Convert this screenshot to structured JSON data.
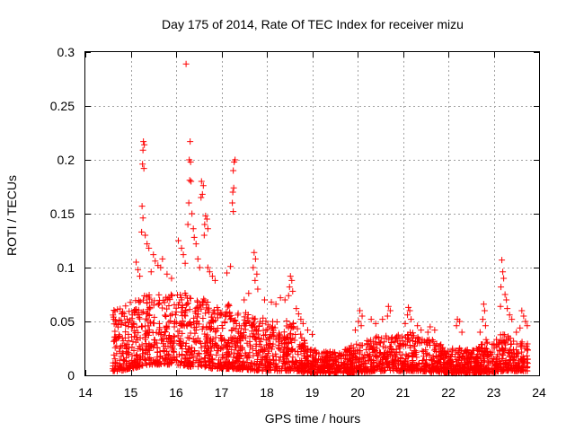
{
  "chart_data": {
    "type": "scatter",
    "title": "Day 175 of 2014, Rate Of TEC Index for receiver mizu",
    "xlabel": "GPS time / hours",
    "ylabel": "ROTI / TECUs",
    "xlim": [
      14,
      24
    ],
    "ylim": [
      0,
      0.3
    ],
    "xticks": [
      "14",
      "15",
      "16",
      "17",
      "18",
      "19",
      "20",
      "21",
      "22",
      "23",
      "24"
    ],
    "yticks": [
      "0",
      "0.05",
      "0.1",
      "0.15",
      "0.2",
      "0.25",
      "0.3"
    ],
    "grid": true,
    "marker": "+",
    "color": "#ff0000",
    "series": [
      {
        "name": "ROTI",
        "points": [
          [
            16.22,
            0.289
          ],
          [
            15.28,
            0.217
          ],
          [
            15.3,
            0.214
          ],
          [
            15.27,
            0.209
          ],
          [
            15.26,
            0.196
          ],
          [
            15.29,
            0.192
          ],
          [
            16.31,
            0.217
          ],
          [
            16.29,
            0.2
          ],
          [
            16.32,
            0.198
          ],
          [
            16.3,
            0.181
          ],
          [
            16.33,
            0.18
          ],
          [
            16.56,
            0.18
          ],
          [
            16.6,
            0.176
          ],
          [
            16.58,
            0.168
          ],
          [
            16.55,
            0.165
          ],
          [
            17.3,
            0.2
          ],
          [
            17.28,
            0.198
          ],
          [
            17.26,
            0.19
          ],
          [
            17.27,
            0.174
          ],
          [
            17.25,
            0.17
          ],
          [
            17.24,
            0.16
          ],
          [
            17.26,
            0.152
          ],
          [
            16.65,
            0.148
          ],
          [
            16.68,
            0.145
          ],
          [
            16.63,
            0.14
          ],
          [
            16.7,
            0.136
          ],
          [
            16.62,
            0.13
          ],
          [
            16.28,
            0.16
          ],
          [
            16.35,
            0.15
          ],
          [
            16.26,
            0.14
          ],
          [
            16.38,
            0.136
          ],
          [
            16.4,
            0.128
          ],
          [
            16.44,
            0.122
          ],
          [
            15.25,
            0.157
          ],
          [
            15.27,
            0.146
          ],
          [
            15.24,
            0.133
          ],
          [
            15.32,
            0.13
          ],
          [
            15.36,
            0.122
          ],
          [
            15.4,
            0.118
          ],
          [
            15.5,
            0.112
          ],
          [
            15.54,
            0.106
          ],
          [
            15.6,
            0.102
          ],
          [
            15.66,
            0.1
          ],
          [
            15.7,
            0.108
          ],
          [
            16.05,
            0.125
          ],
          [
            16.12,
            0.118
          ],
          [
            16.16,
            0.112
          ],
          [
            16.2,
            0.104
          ],
          [
            16.48,
            0.108
          ],
          [
            16.52,
            0.1
          ],
          [
            15.12,
            0.105
          ],
          [
            15.16,
            0.098
          ],
          [
            15.2,
            0.092
          ],
          [
            15.45,
            0.096
          ],
          [
            15.8,
            0.094
          ],
          [
            15.9,
            0.09
          ],
          [
            16.7,
            0.1
          ],
          [
            16.74,
            0.096
          ],
          [
            16.8,
            0.092
          ],
          [
            16.86,
            0.088
          ],
          [
            17.2,
            0.101
          ],
          [
            17.12,
            0.095
          ],
          [
            17.72,
            0.114
          ],
          [
            17.75,
            0.108
          ],
          [
            17.7,
            0.1
          ],
          [
            17.78,
            0.094
          ],
          [
            17.74,
            0.088
          ],
          [
            17.8,
            0.08
          ],
          [
            18.52,
            0.092
          ],
          [
            18.55,
            0.088
          ],
          [
            18.5,
            0.082
          ],
          [
            18.57,
            0.078
          ],
          [
            18.48,
            0.074
          ],
          [
            18.4,
            0.07
          ],
          [
            18.1,
            0.068
          ],
          [
            18.2,
            0.066
          ],
          [
            18.3,
            0.072
          ],
          [
            17.95,
            0.07
          ],
          [
            17.6,
            0.076
          ],
          [
            17.5,
            0.07
          ],
          [
            18.65,
            0.062
          ],
          [
            18.7,
            0.057
          ],
          [
            18.75,
            0.052
          ],
          [
            18.8,
            0.048
          ],
          [
            18.9,
            0.042
          ],
          [
            19.0,
            0.038
          ],
          [
            20.05,
            0.06
          ],
          [
            20.1,
            0.055
          ],
          [
            20.02,
            0.05
          ],
          [
            20.08,
            0.046
          ],
          [
            19.95,
            0.042
          ],
          [
            20.3,
            0.052
          ],
          [
            20.4,
            0.048
          ],
          [
            20.55,
            0.052
          ],
          [
            20.68,
            0.064
          ],
          [
            20.72,
            0.06
          ],
          [
            20.66,
            0.055
          ],
          [
            21.12,
            0.063
          ],
          [
            21.15,
            0.06
          ],
          [
            21.1,
            0.056
          ],
          [
            21.18,
            0.052
          ],
          [
            21.05,
            0.048
          ],
          [
            21.32,
            0.046
          ],
          [
            21.4,
            0.042
          ],
          [
            21.55,
            0.04
          ],
          [
            21.6,
            0.045
          ],
          [
            21.7,
            0.042
          ],
          [
            22.2,
            0.052
          ],
          [
            22.25,
            0.05
          ],
          [
            22.18,
            0.046
          ],
          [
            22.3,
            0.04
          ],
          [
            22.78,
            0.066
          ],
          [
            22.8,
            0.06
          ],
          [
            22.76,
            0.052
          ],
          [
            22.82,
            0.046
          ],
          [
            22.7,
            0.04
          ],
          [
            23.18,
            0.107
          ],
          [
            23.2,
            0.096
          ],
          [
            23.22,
            0.09
          ],
          [
            23.16,
            0.082
          ],
          [
            23.25,
            0.075
          ],
          [
            23.28,
            0.07
          ],
          [
            23.15,
            0.064
          ],
          [
            23.3,
            0.062
          ],
          [
            23.35,
            0.056
          ],
          [
            23.4,
            0.052
          ],
          [
            23.62,
            0.06
          ],
          [
            23.66,
            0.055
          ],
          [
            23.7,
            0.05
          ],
          [
            23.74,
            0.046
          ],
          [
            23.58,
            0.044
          ],
          [
            23.5,
            0.04
          ]
        ],
        "envelope": [
          [
            14.6,
            0.06,
            0.004
          ],
          [
            14.8,
            0.064,
            0.004
          ],
          [
            15.0,
            0.072,
            0.006
          ],
          [
            15.2,
            0.076,
            0.008
          ],
          [
            15.4,
            0.082,
            0.01
          ],
          [
            15.6,
            0.08,
            0.01
          ],
          [
            15.8,
            0.072,
            0.01
          ],
          [
            16.0,
            0.08,
            0.01
          ],
          [
            16.2,
            0.08,
            0.008
          ],
          [
            16.4,
            0.075,
            0.008
          ],
          [
            16.6,
            0.072,
            0.008
          ],
          [
            16.8,
            0.065,
            0.006
          ],
          [
            17.0,
            0.062,
            0.006
          ],
          [
            17.2,
            0.068,
            0.006
          ],
          [
            17.4,
            0.058,
            0.005
          ],
          [
            17.6,
            0.06,
            0.005
          ],
          [
            17.8,
            0.055,
            0.004
          ],
          [
            18.0,
            0.052,
            0.004
          ],
          [
            18.2,
            0.05,
            0.004
          ],
          [
            18.4,
            0.052,
            0.004
          ],
          [
            18.6,
            0.05,
            0.004
          ],
          [
            18.8,
            0.034,
            0.003
          ],
          [
            19.0,
            0.024,
            0.002
          ],
          [
            19.2,
            0.022,
            0.002
          ],
          [
            19.4,
            0.022,
            0.002
          ],
          [
            19.6,
            0.024,
            0.002
          ],
          [
            19.8,
            0.026,
            0.002
          ],
          [
            20.0,
            0.032,
            0.003
          ],
          [
            20.2,
            0.034,
            0.003
          ],
          [
            20.4,
            0.036,
            0.004
          ],
          [
            20.6,
            0.038,
            0.004
          ],
          [
            20.8,
            0.036,
            0.004
          ],
          [
            21.0,
            0.04,
            0.004
          ],
          [
            21.2,
            0.04,
            0.004
          ],
          [
            21.4,
            0.034,
            0.004
          ],
          [
            21.6,
            0.034,
            0.003
          ],
          [
            21.8,
            0.03,
            0.003
          ],
          [
            22.0,
            0.024,
            0.002
          ],
          [
            22.2,
            0.026,
            0.002
          ],
          [
            22.4,
            0.024,
            0.002
          ],
          [
            22.6,
            0.026,
            0.002
          ],
          [
            22.8,
            0.034,
            0.003
          ],
          [
            23.0,
            0.032,
            0.003
          ],
          [
            23.2,
            0.04,
            0.004
          ],
          [
            23.4,
            0.034,
            0.004
          ],
          [
            23.6,
            0.032,
            0.004
          ],
          [
            23.75,
            0.03,
            0.004
          ]
        ]
      }
    ]
  }
}
